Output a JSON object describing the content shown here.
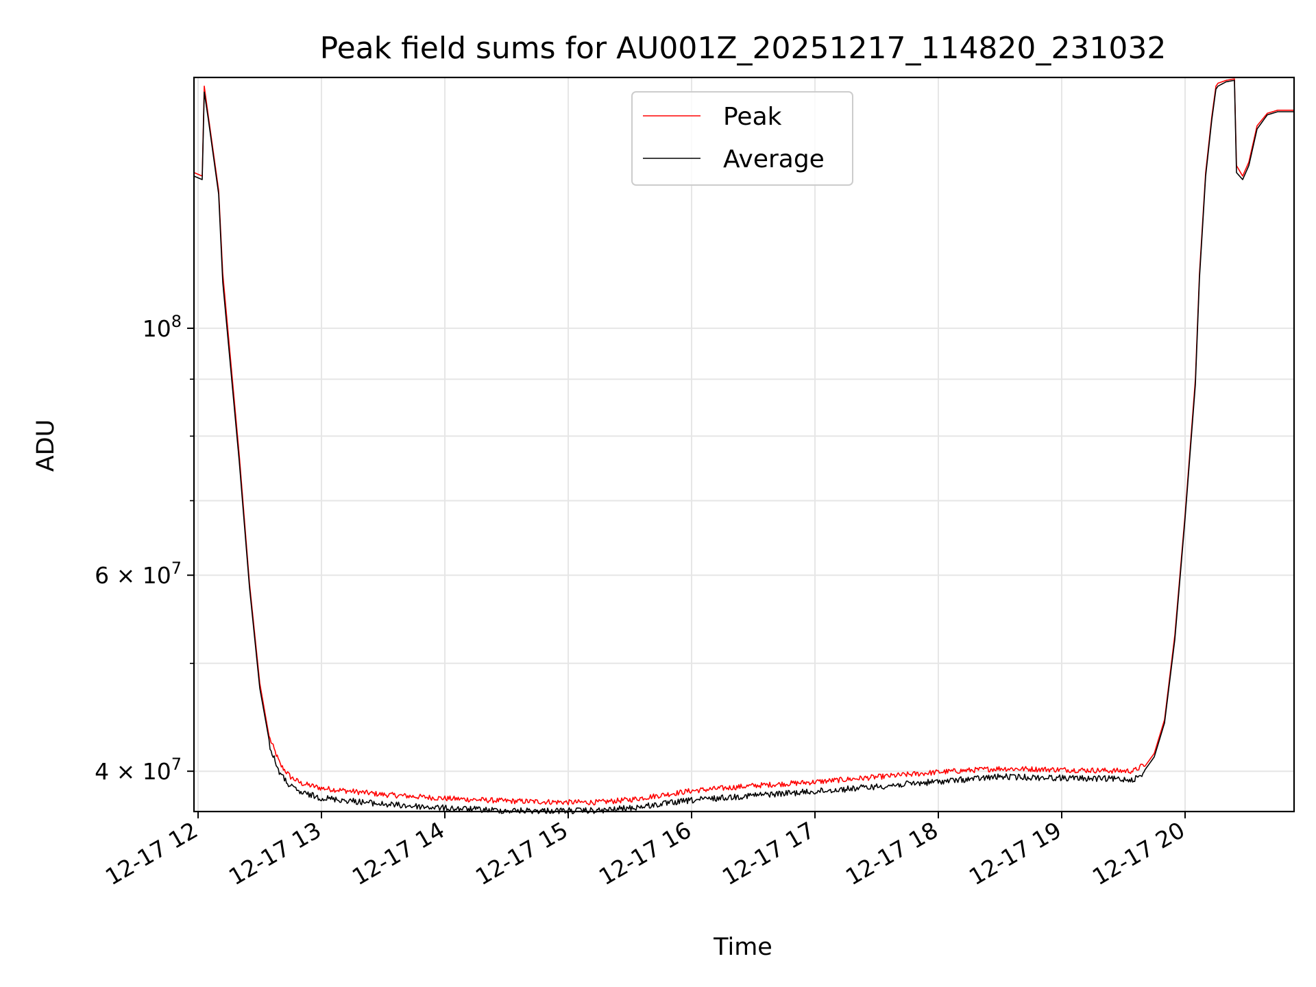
{
  "chart_data": {
    "type": "line",
    "title": "Peak field sums for AU001Z_20251217_114820_231032",
    "xlabel": "Time",
    "ylabel": "ADU",
    "y_scale": "log",
    "ylim": [
      36800000,
      168000000
    ],
    "xlim": [
      "2025-12-17 11:58",
      "2025-12-17 20:53"
    ],
    "grid": true,
    "legend_position": "top-center",
    "x_ticks": [
      {
        "t": "2025-12-17 12:00",
        "label": "12-17 12"
      },
      {
        "t": "2025-12-17 13:00",
        "label": "12-17 13"
      },
      {
        "t": "2025-12-17 14:00",
        "label": "12-17 14"
      },
      {
        "t": "2025-12-17 15:00",
        "label": "12-17 15"
      },
      {
        "t": "2025-12-17 16:00",
        "label": "12-17 16"
      },
      {
        "t": "2025-12-17 17:00",
        "label": "12-17 17"
      },
      {
        "t": "2025-12-17 18:00",
        "label": "12-17 18"
      },
      {
        "t": "2025-12-17 19:00",
        "label": "12-17 19"
      },
      {
        "t": "2025-12-17 20:00",
        "label": "12-17 20"
      }
    ],
    "y_major_ticks": [
      {
        "v": 40000000,
        "base": "4 × 10",
        "exp": "7"
      },
      {
        "v": 60000000,
        "base": "6 × 10",
        "exp": "7"
      },
      {
        "v": 100000000,
        "base": "10",
        "exp": "8"
      }
    ],
    "y_minor_ticks": [
      50000000,
      70000000,
      80000000,
      90000000
    ],
    "colors": {
      "Peak": "#ff0000",
      "Average": "#000000"
    },
    "series": [
      {
        "name": "Peak",
        "color": "#ff0000",
        "x": [
          "2025-12-17 11:58",
          "2025-12-17 12:02",
          "2025-12-17 12:03",
          "2025-12-17 12:05",
          "2025-12-17 12:10",
          "2025-12-17 12:12",
          "2025-12-17 12:20",
          "2025-12-17 12:25",
          "2025-12-17 12:30",
          "2025-12-17 12:35",
          "2025-12-17 12:40",
          "2025-12-17 12:45",
          "2025-12-17 12:50",
          "2025-12-17 13:00",
          "2025-12-17 13:30",
          "2025-12-17 14:00",
          "2025-12-17 14:30",
          "2025-12-17 15:00",
          "2025-12-17 15:15",
          "2025-12-17 15:30",
          "2025-12-17 16:00",
          "2025-12-17 16:30",
          "2025-12-17 17:00",
          "2025-12-17 17:30",
          "2025-12-17 18:00",
          "2025-12-17 18:30",
          "2025-12-17 19:00",
          "2025-12-17 19:30",
          "2025-12-17 19:35",
          "2025-12-17 19:40",
          "2025-12-17 19:45",
          "2025-12-17 19:50",
          "2025-12-17 19:55",
          "2025-12-17 20:00",
          "2025-12-17 20:05",
          "2025-12-17 20:07",
          "2025-12-17 20:10",
          "2025-12-17 20:13",
          "2025-12-17 20:15",
          "2025-12-17 20:16",
          "2025-12-17 20:20",
          "2025-12-17 20:24",
          "2025-12-17 20:25",
          "2025-12-17 20:28",
          "2025-12-17 20:31",
          "2025-12-17 20:35",
          "2025-12-17 20:40",
          "2025-12-17 20:45",
          "2025-12-17 20:53"
        ],
        "y": [
          138000000,
          137000000,
          165000000,
          155000000,
          133000000,
          112000000,
          77000000,
          59000000,
          48000000,
          42500000,
          40300000,
          39300000,
          38800000,
          38400000,
          37900000,
          37600000,
          37400000,
          37300000,
          37300000,
          37500000,
          38200000,
          38600000,
          38900000,
          39300000,
          39700000,
          40000000,
          39900000,
          39800000,
          39800000,
          40300000,
          41500000,
          44500000,
          53000000,
          68000000,
          90000000,
          112000000,
          138000000,
          155000000,
          165000000,
          166000000,
          167000000,
          167500000,
          140000000,
          137000000,
          141000000,
          152000000,
          156000000,
          157000000,
          157000000
        ]
      },
      {
        "name": "Average",
        "color": "#000000",
        "x": [
          "2025-12-17 11:58",
          "2025-12-17 12:02",
          "2025-12-17 12:03",
          "2025-12-17 12:05",
          "2025-12-17 12:10",
          "2025-12-17 12:12",
          "2025-12-17 12:20",
          "2025-12-17 12:25",
          "2025-12-17 12:30",
          "2025-12-17 12:35",
          "2025-12-17 12:40",
          "2025-12-17 12:45",
          "2025-12-17 12:50",
          "2025-12-17 13:00",
          "2025-12-17 13:30",
          "2025-12-17 14:00",
          "2025-12-17 14:30",
          "2025-12-17 15:00",
          "2025-12-17 15:15",
          "2025-12-17 15:30",
          "2025-12-17 16:00",
          "2025-12-17 16:30",
          "2025-12-17 17:00",
          "2025-12-17 17:30",
          "2025-12-17 18:00",
          "2025-12-17 18:30",
          "2025-12-17 19:00",
          "2025-12-17 19:30",
          "2025-12-17 19:35",
          "2025-12-17 19:40",
          "2025-12-17 19:45",
          "2025-12-17 19:50",
          "2025-12-17 19:55",
          "2025-12-17 20:00",
          "2025-12-17 20:05",
          "2025-12-17 20:07",
          "2025-12-17 20:10",
          "2025-12-17 20:13",
          "2025-12-17 20:15",
          "2025-12-17 20:16",
          "2025-12-17 20:20",
          "2025-12-17 20:24",
          "2025-12-17 20:25",
          "2025-12-17 20:28",
          "2025-12-17 20:31",
          "2025-12-17 20:35",
          "2025-12-17 20:40",
          "2025-12-17 20:45",
          "2025-12-17 20:53"
        ],
        "y": [
          137000000,
          136000000,
          163000000,
          154000000,
          132000000,
          110000000,
          76000000,
          58500000,
          47500000,
          42200000,
          40000000,
          39000000,
          38500000,
          38100000,
          37600000,
          37300000,
          37100000,
          37100000,
          37100000,
          37300000,
          37900000,
          38300000,
          38600000,
          39000000,
          39400000,
          39800000,
          39700000,
          39600000,
          39600000,
          40000000,
          41200000,
          44200000,
          52500000,
          67500000,
          89000000,
          111000000,
          137000000,
          154000000,
          164000000,
          165000000,
          166500000,
          167000000,
          138000000,
          136000000,
          140000000,
          151000000,
          155500000,
          156500000,
          156500000
        ]
      }
    ]
  }
}
